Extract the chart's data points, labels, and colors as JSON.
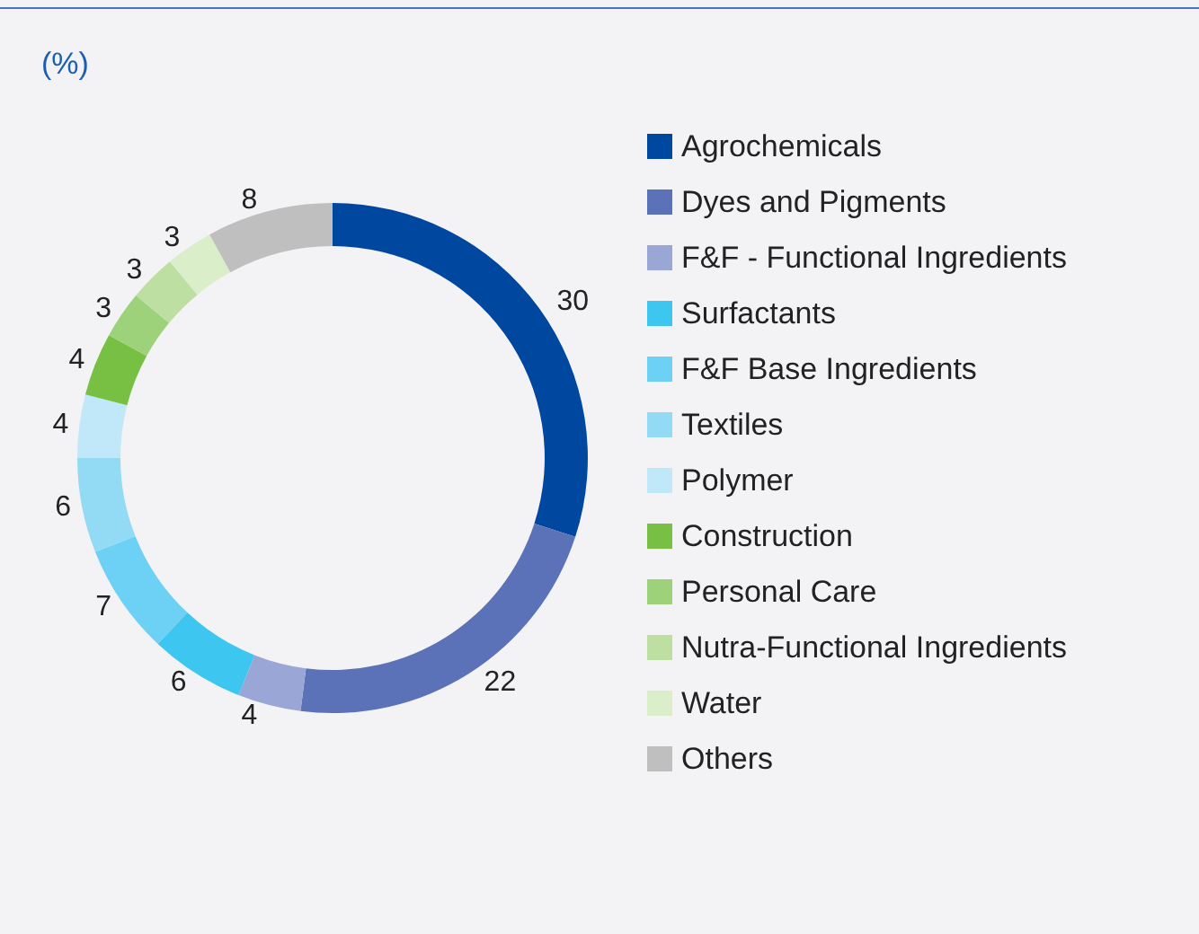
{
  "chart_data": {
    "type": "donut",
    "title": "(%)",
    "categories": [
      "Agrochemicals",
      "Dyes and Pigments",
      "F&F - Functional Ingredients",
      "Surfactants",
      "F&F Base Ingredients",
      "Textiles",
      "Polymer",
      "Construction",
      "Personal Care",
      "Nutra-Functional Ingredients",
      "Water",
      "Others"
    ],
    "values": [
      30,
      22,
      4,
      6,
      7,
      6,
      4,
      4,
      3,
      3,
      3,
      8
    ],
    "colors": [
      "#0047a0",
      "#5b72b8",
      "#9aa6d6",
      "#3cc6f0",
      "#6dd0f5",
      "#93dbf5",
      "#c0e8f8",
      "#78c043",
      "#9ed27a",
      "#bde0a2",
      "#d9eec9",
      "#bfbfbf"
    ],
    "data_labels": true,
    "legend": "right"
  }
}
